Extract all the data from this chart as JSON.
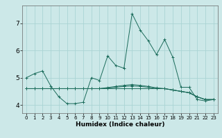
{
  "xlabel": "Humidex (Indice chaleur)",
  "ylabel": "",
  "background_color": "#cce8e8",
  "grid_color": "#aad4d4",
  "line_color": "#1a6b5a",
  "xlim": [
    -0.5,
    23.5
  ],
  "ylim": [
    3.7,
    7.65
  ],
  "yticks": [
    4,
    5,
    6,
    7
  ],
  "xticks": [
    0,
    1,
    2,
    3,
    4,
    5,
    6,
    7,
    8,
    9,
    10,
    11,
    12,
    13,
    14,
    15,
    16,
    17,
    18,
    19,
    20,
    21,
    22,
    23
  ],
  "series": [
    {
      "x": [
        0,
        1,
        2,
        3,
        4,
        5,
        6,
        7,
        8,
        9,
        10,
        11,
        12,
        13,
        14,
        15,
        16,
        17,
        18,
        19,
        20,
        21,
        22,
        23
      ],
      "y": [
        5.0,
        5.15,
        5.25,
        4.7,
        4.3,
        4.05,
        4.05,
        4.1,
        5.0,
        4.9,
        5.8,
        5.45,
        5.35,
        7.35,
        6.75,
        6.35,
        5.85,
        6.4,
        5.75,
        4.65,
        4.65,
        4.2,
        4.15,
        4.2
      ]
    },
    {
      "x": [
        0,
        1,
        2,
        3,
        4,
        5,
        6,
        7,
        8,
        9,
        10,
        11,
        12,
        13,
        14,
        15,
        16,
        17,
        18,
        19,
        20,
        21,
        22,
        23
      ],
      "y": [
        4.6,
        4.6,
        4.6,
        4.6,
        4.6,
        4.6,
        4.6,
        4.6,
        4.6,
        4.6,
        4.6,
        4.6,
        4.6,
        4.6,
        4.6,
        4.6,
        4.6,
        4.6,
        4.55,
        4.5,
        4.45,
        4.3,
        4.2,
        4.2
      ]
    },
    {
      "x": [
        0,
        1,
        2,
        3,
        4,
        5,
        6,
        7,
        8,
        9,
        10,
        11,
        12,
        13,
        14,
        15,
        16,
        17,
        18,
        19,
        20,
        21,
        22,
        23
      ],
      "y": [
        4.6,
        4.6,
        4.6,
        4.6,
        4.6,
        4.6,
        4.6,
        4.6,
        4.6,
        4.6,
        4.62,
        4.65,
        4.68,
        4.7,
        4.68,
        4.65,
        4.6,
        4.6,
        4.55,
        4.5,
        4.45,
        4.3,
        4.2,
        4.2
      ]
    },
    {
      "x": [
        0,
        1,
        2,
        3,
        4,
        5,
        6,
        7,
        8,
        9,
        10,
        11,
        12,
        13,
        14,
        15,
        16,
        17,
        18,
        19,
        20,
        21,
        22,
        23
      ],
      "y": [
        4.6,
        4.6,
        4.6,
        4.6,
        4.6,
        4.6,
        4.6,
        4.6,
        4.6,
        4.6,
        4.64,
        4.68,
        4.72,
        4.75,
        4.72,
        4.68,
        4.63,
        4.6,
        4.55,
        4.5,
        4.45,
        4.3,
        4.2,
        4.2
      ]
    }
  ]
}
